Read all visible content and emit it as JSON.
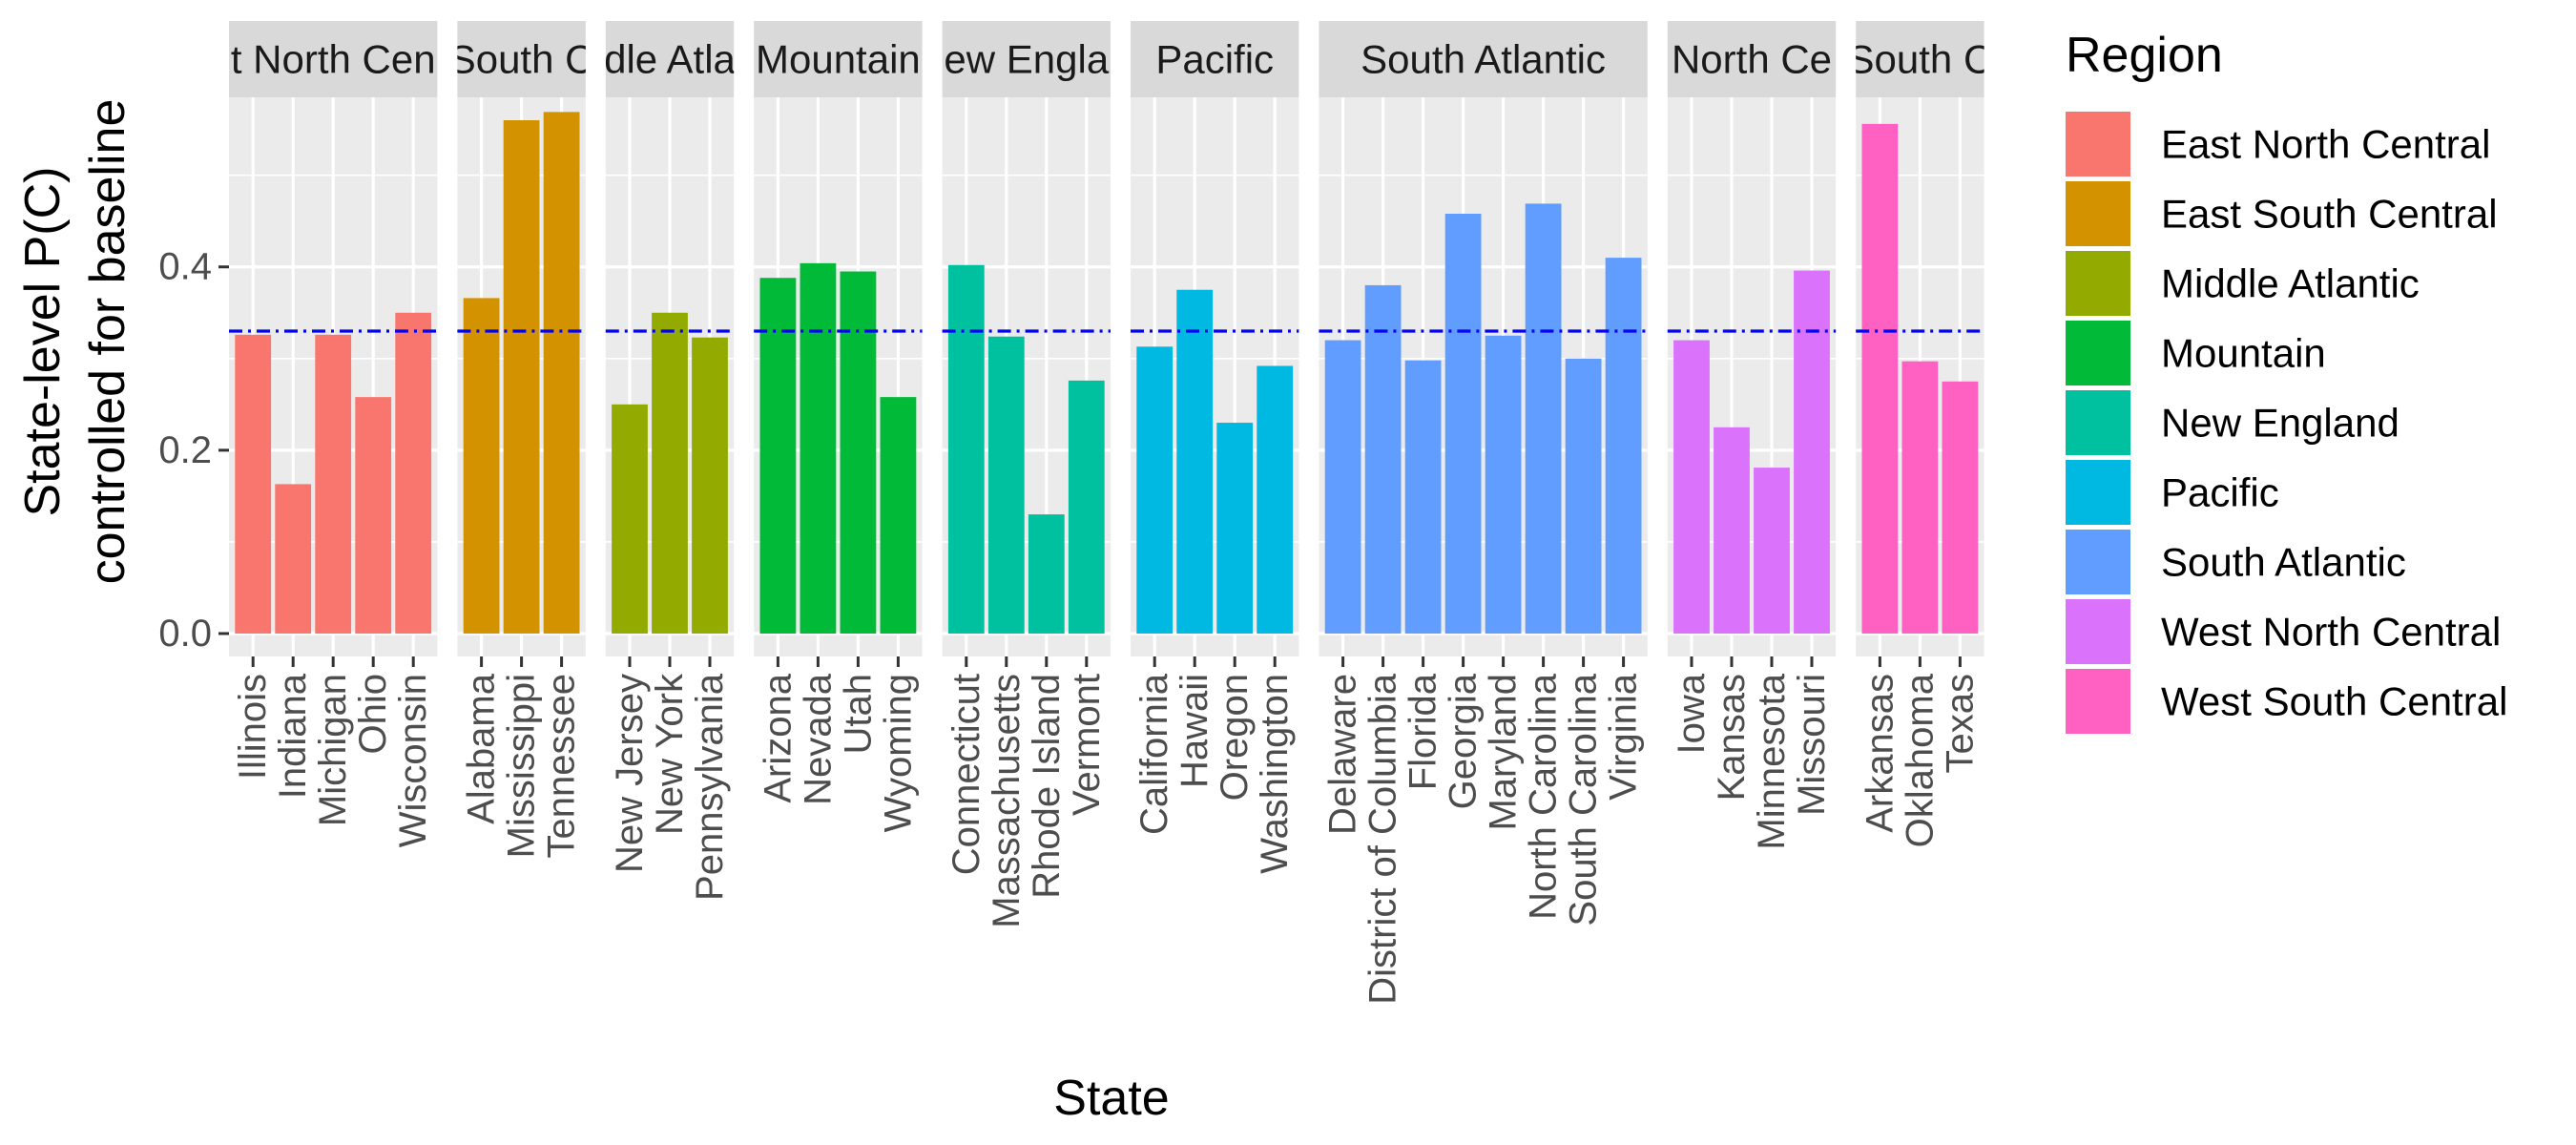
{
  "chart_data": {
    "type": "bar",
    "ylabel_lines": [
      "State-level P(C)",
      "controlled for baseline"
    ],
    "xlabel": "State",
    "ylim": [
      -0.025,
      0.585
    ],
    "yticks": [
      0.0,
      0.2,
      0.4
    ],
    "ytick_labels": [
      "0.0",
      "0.2",
      "0.4"
    ],
    "baseline": 0.33,
    "grid": true,
    "legend": {
      "title": "Region",
      "position": "right",
      "entries": [
        {
          "label": "East North Central",
          "color": "#F8766D"
        },
        {
          "label": "East South Central",
          "color": "#D39200"
        },
        {
          "label": "Middle Atlantic",
          "color": "#93AA00"
        },
        {
          "label": "Mountain",
          "color": "#00BA38"
        },
        {
          "label": "New England",
          "color": "#00C19F"
        },
        {
          "label": "Pacific",
          "color": "#00B9E3"
        },
        {
          "label": "South Atlantic",
          "color": "#619CFF"
        },
        {
          "label": "West North Central",
          "color": "#DB72FB"
        },
        {
          "label": "West South Central",
          "color": "#FF61C3"
        }
      ]
    },
    "panels": [
      {
        "strip": "t North Cen",
        "region": "East North Central",
        "color": "#F8766D",
        "states": [
          "Illinois",
          "Indiana",
          "Michigan",
          "Ohio",
          "Wisconsin"
        ],
        "values": [
          0.326,
          0.163,
          0.326,
          0.258,
          0.35
        ]
      },
      {
        "strip": "South C",
        "region": "East South Central",
        "color": "#D39200",
        "states": [
          "Alabama",
          "Mississippi",
          "Tennessee"
        ],
        "values": [
          0.366,
          0.56,
          0.569
        ]
      },
      {
        "strip": "dle Atla",
        "region": "Middle Atlantic",
        "color": "#93AA00",
        "states": [
          "New Jersey",
          "New York",
          "Pennsylvania"
        ],
        "values": [
          0.25,
          0.35,
          0.323
        ]
      },
      {
        "strip": "Mountain",
        "region": "Mountain",
        "color": "#00BA38",
        "states": [
          "Arizona",
          "Nevada",
          "Utah",
          "Wyoming"
        ],
        "values": [
          0.388,
          0.404,
          0.395,
          0.258
        ]
      },
      {
        "strip": "ew Engla",
        "region": "New England",
        "color": "#00C19F",
        "states": [
          "Connecticut",
          "Massachusetts",
          "Rhode Island",
          "Vermont"
        ],
        "values": [
          0.402,
          0.324,
          0.13,
          0.276
        ]
      },
      {
        "strip": "Pacific",
        "region": "Pacific",
        "color": "#00B9E3",
        "states": [
          "California",
          "Hawaii",
          "Oregon",
          "Washington"
        ],
        "values": [
          0.313,
          0.375,
          0.23,
          0.292
        ]
      },
      {
        "strip": "South Atlantic",
        "region": "South Atlantic",
        "color": "#619CFF",
        "states": [
          "Delaware",
          "District of Columbia",
          "Florida",
          "Georgia",
          "Maryland",
          "North Carolina",
          "South Carolina",
          "Virginia"
        ],
        "values": [
          0.32,
          0.38,
          0.298,
          0.458,
          0.325,
          0.469,
          0.3,
          0.41
        ]
      },
      {
        "strip": "North Ce",
        "region": "West North Central",
        "color": "#DB72FB",
        "states": [
          "Iowa",
          "Kansas",
          "Minnesota",
          "Missouri"
        ],
        "values": [
          0.32,
          0.225,
          0.181,
          0.396
        ]
      },
      {
        "strip": "South C",
        "region": "West South Central",
        "color": "#FF61C3",
        "states": [
          "Arkansas",
          "Oklahoma",
          "Texas"
        ],
        "values": [
          0.556,
          0.297,
          0.275
        ]
      }
    ]
  }
}
